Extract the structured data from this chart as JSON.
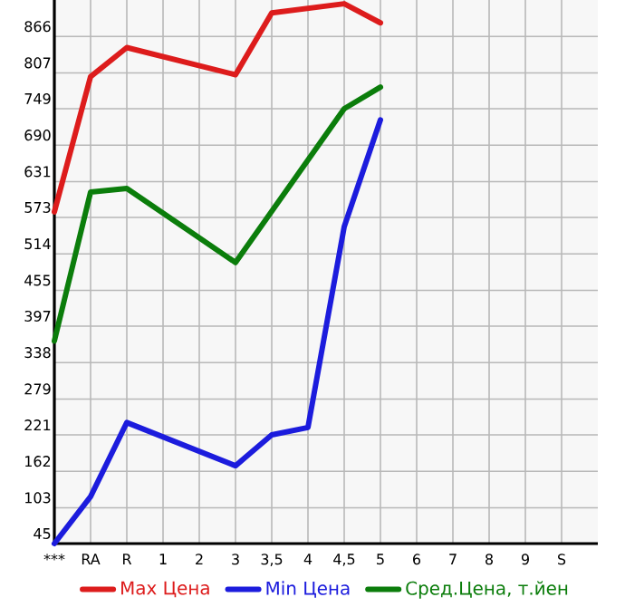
{
  "chart_data": {
    "type": "line",
    "categories": [
      "***",
      "RA",
      "R",
      "1",
      "2",
      "3",
      "3,5",
      "4",
      "4,5",
      "5",
      "6",
      "7",
      "8",
      "9",
      "S"
    ],
    "series": [
      {
        "name": "Max Цена",
        "color": "#dd1c1c",
        "values": [
          582,
          801,
          848,
          null,
          null,
          804,
          904,
          null,
          919,
          888,
          null,
          null,
          null,
          null,
          null
        ]
      },
      {
        "name": "Min Цена",
        "color": "#1c1cdd",
        "values": [
          45,
          121,
          241,
          null,
          null,
          171,
          221,
          233,
          558,
          731,
          null,
          null,
          null,
          null,
          null
        ]
      },
      {
        "name": "Сред.Цена, т.йен",
        "color": "#0b7d0b",
        "values": [
          373,
          614,
          620,
          null,
          null,
          500,
          null,
          null,
          749,
          784,
          null,
          null,
          null,
          null,
          null
        ]
      }
    ],
    "ylim": [
      45,
      925
    ],
    "yticks": [
      45,
      103,
      162,
      221,
      279,
      338,
      397,
      455,
      514,
      573,
      631,
      690,
      749,
      807,
      866
    ],
    "grid": true,
    "legend": "bottom",
    "marker": "none",
    "line_style": "solid"
  }
}
